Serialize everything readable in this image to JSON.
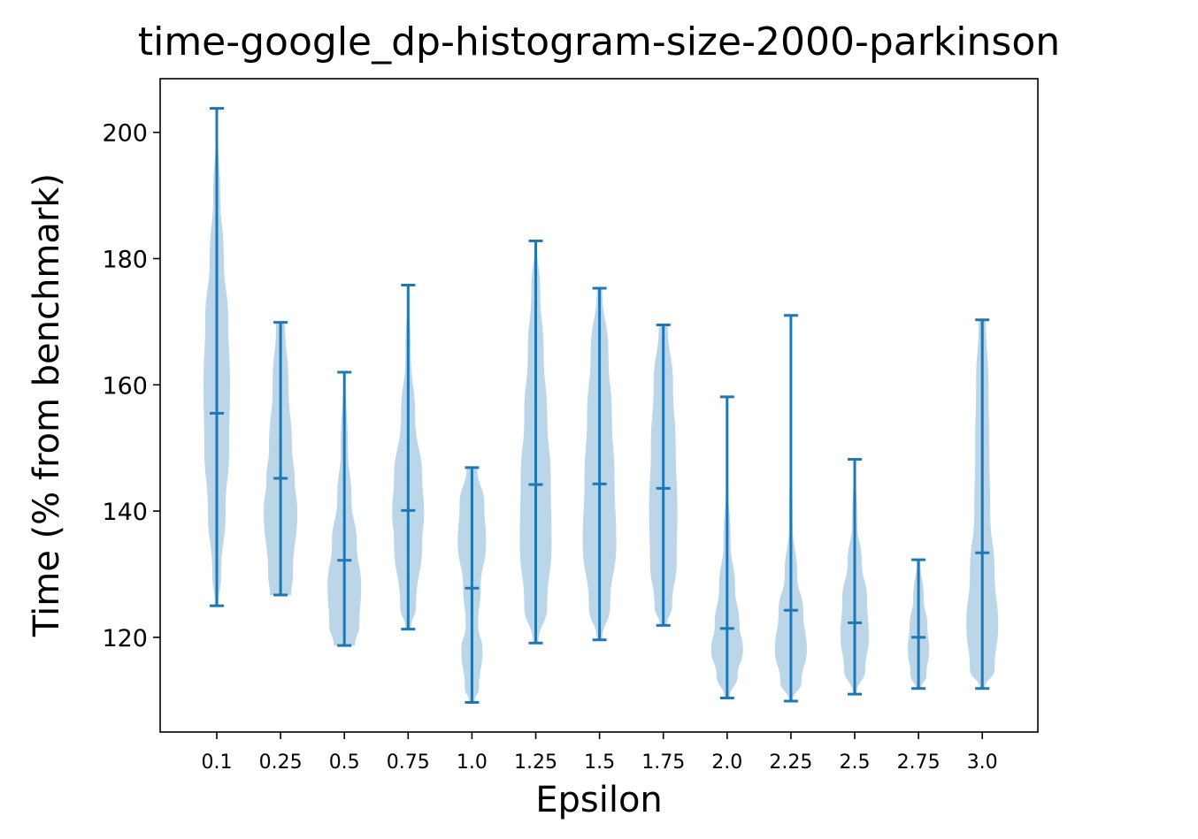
{
  "chart_data": {
    "type": "violin",
    "title": "time-google_dp-histogram-size-2000-parkinson",
    "xlabel": "Epsilon",
    "ylabel": "Time (% from benchmark)",
    "ylim": [
      105,
      208.5
    ],
    "yticks": [
      120,
      140,
      160,
      180,
      200
    ],
    "categories": [
      "0.1",
      "0.25",
      "0.5",
      "0.75",
      "1.0",
      "1.25",
      "1.5",
      "1.75",
      "2.0",
      "2.25",
      "2.5",
      "2.75",
      "3.0"
    ],
    "color": "#1f77b4",
    "violins": [
      {
        "min": 125.0,
        "median": 155.5,
        "max": 203.8,
        "profile": [
          [
            125,
            2
          ],
          [
            130,
            5
          ],
          [
            140,
            10
          ],
          [
            150,
            14
          ],
          [
            160,
            15
          ],
          [
            170,
            13
          ],
          [
            180,
            8
          ],
          [
            190,
            4
          ],
          [
            200,
            1
          ],
          [
            203.8,
            0.5
          ]
        ]
      },
      {
        "min": 126.7,
        "median": 145.2,
        "max": 169.9,
        "profile": [
          [
            126.7,
            12
          ],
          [
            130,
            14
          ],
          [
            140,
            19
          ],
          [
            145,
            16
          ],
          [
            150,
            13
          ],
          [
            160,
            9
          ],
          [
            169.9,
            5
          ]
        ]
      },
      {
        "min": 118.7,
        "median": 132.2,
        "max": 162.0,
        "profile": [
          [
            118.7,
            12
          ],
          [
            122,
            17
          ],
          [
            128,
            19
          ],
          [
            135,
            14
          ],
          [
            142,
            8
          ],
          [
            150,
            4
          ],
          [
            162,
            1
          ]
        ]
      },
      {
        "min": 121.3,
        "median": 140.1,
        "max": 175.8,
        "profile": [
          [
            121.3,
            3
          ],
          [
            125,
            9
          ],
          [
            135,
            16
          ],
          [
            140,
            18
          ],
          [
            145,
            16
          ],
          [
            155,
            8
          ],
          [
            165,
            3
          ],
          [
            175.8,
            0.5
          ]
        ]
      },
      {
        "min": 109.7,
        "median": 127.8,
        "max": 146.9,
        "profile": [
          [
            109.7,
            3
          ],
          [
            112,
            8
          ],
          [
            118,
            12
          ],
          [
            122,
            7
          ],
          [
            128,
            10
          ],
          [
            135,
            16
          ],
          [
            141,
            14
          ],
          [
            146.9,
            6
          ]
        ]
      },
      {
        "min": 119.1,
        "median": 144.2,
        "max": 182.8,
        "profile": [
          [
            119.1,
            3
          ],
          [
            125,
            13
          ],
          [
            135,
            18
          ],
          [
            145,
            17
          ],
          [
            155,
            13
          ],
          [
            165,
            9
          ],
          [
            175,
            5
          ],
          [
            182.8,
            1
          ]
        ]
      },
      {
        "min": 119.6,
        "median": 144.3,
        "max": 175.3,
        "profile": [
          [
            119.6,
            3
          ],
          [
            125,
            12
          ],
          [
            135,
            19
          ],
          [
            145,
            17
          ],
          [
            155,
            14
          ],
          [
            165,
            10
          ],
          [
            175.3,
            3
          ]
        ]
      },
      {
        "min": 121.9,
        "median": 143.6,
        "max": 169.5,
        "profile": [
          [
            121.9,
            4
          ],
          [
            125,
            10
          ],
          [
            132,
            15
          ],
          [
            140,
            16
          ],
          [
            150,
            14
          ],
          [
            160,
            11
          ],
          [
            169.5,
            5
          ]
        ]
      },
      {
        "min": 110.4,
        "median": 121.4,
        "max": 158.1,
        "profile": [
          [
            110.4,
            3
          ],
          [
            114,
            12
          ],
          [
            118,
            18
          ],
          [
            122,
            14
          ],
          [
            128,
            9
          ],
          [
            135,
            4
          ],
          [
            145,
            1
          ],
          [
            158.1,
            0.5
          ]
        ]
      },
      {
        "min": 109.9,
        "median": 124.3,
        "max": 171.0,
        "profile": [
          [
            109.9,
            2
          ],
          [
            113,
            12
          ],
          [
            118,
            18
          ],
          [
            124,
            14
          ],
          [
            130,
            7
          ],
          [
            138,
            2
          ],
          [
            150,
            0.7
          ],
          [
            171,
            0.3
          ]
        ]
      },
      {
        "min": 111.0,
        "median": 122.3,
        "max": 148.2,
        "profile": [
          [
            111,
            2
          ],
          [
            115,
            12
          ],
          [
            120,
            16
          ],
          [
            126,
            14
          ],
          [
            132,
            8
          ],
          [
            138,
            3
          ],
          [
            148.2,
            0.5
          ]
        ]
      },
      {
        "min": 111.9,
        "median": 120.0,
        "max": 132.3,
        "profile": [
          [
            111.9,
            3
          ],
          [
            114,
            9
          ],
          [
            118,
            12
          ],
          [
            122,
            10
          ],
          [
            126,
            6
          ],
          [
            132.3,
            2
          ]
        ]
      },
      {
        "min": 111.9,
        "median": 133.4,
        "max": 170.3,
        "profile": [
          [
            111.9,
            3
          ],
          [
            115,
            14
          ],
          [
            122,
            18
          ],
          [
            130,
            14
          ],
          [
            140,
            9
          ],
          [
            150,
            8
          ],
          [
            160,
            7
          ],
          [
            170.3,
            4
          ]
        ]
      }
    ]
  }
}
